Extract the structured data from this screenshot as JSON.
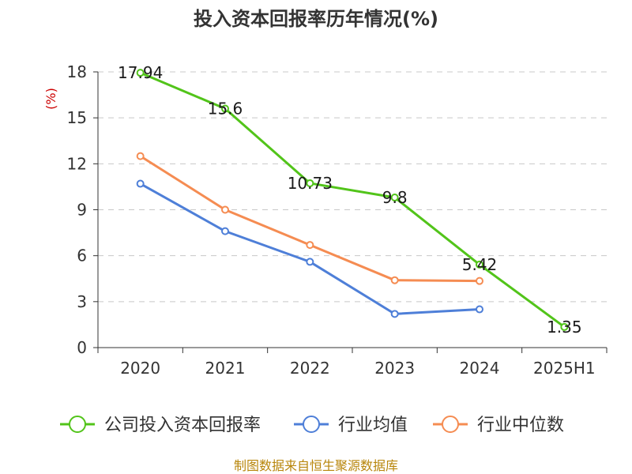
{
  "chart_data": {
    "type": "line",
    "title": "投入资本回报率历年情况(%)",
    "y_unit": "(%)",
    "categories": [
      "2020",
      "2021",
      "2022",
      "2023",
      "2024",
      "2025H1"
    ],
    "ylim": [
      0,
      18
    ],
    "yticks": [
      0,
      3,
      6,
      9,
      12,
      15,
      18
    ],
    "grid": true,
    "legend_position": "bottom",
    "series": [
      {
        "name": "公司投入资本回报率",
        "color": "#52c41a",
        "values": [
          17.94,
          15.6,
          10.73,
          9.8,
          5.42,
          1.35
        ],
        "labels": [
          "17.94",
          "15.6",
          "10.73",
          "9.8",
          "5.42",
          "1.35"
        ]
      },
      {
        "name": "行业均值",
        "color": "#4e7fd8",
        "values": [
          10.7,
          7.6,
          5.6,
          2.2,
          2.5,
          null
        ]
      },
      {
        "name": "行业中位数",
        "color": "#f58c52",
        "values": [
          12.5,
          9.0,
          6.7,
          4.4,
          4.35,
          null
        ]
      }
    ],
    "source": "制图数据来自恒生聚源数据库"
  }
}
